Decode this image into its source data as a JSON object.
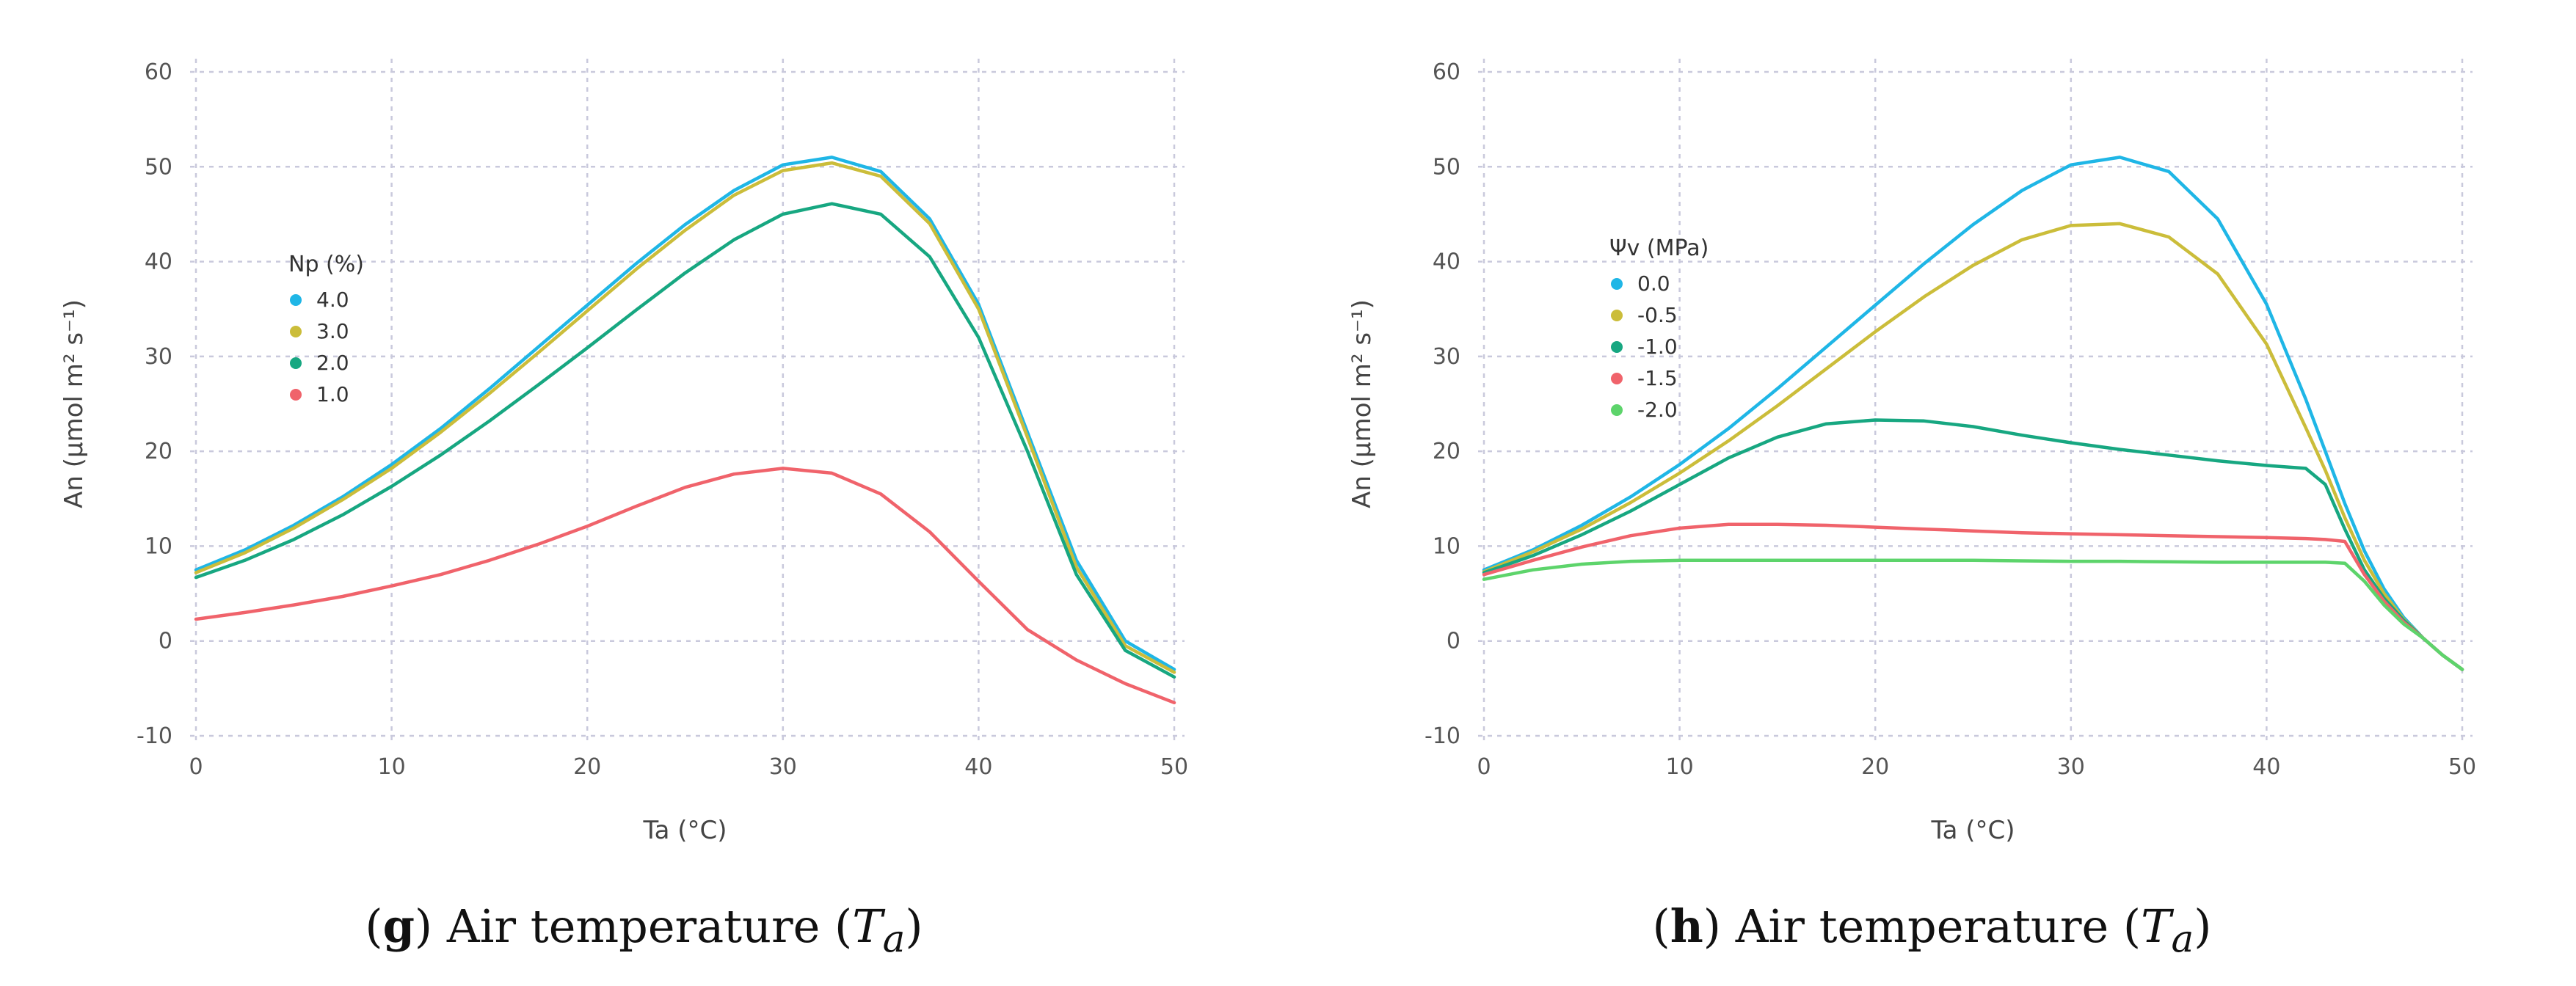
{
  "chart_data": [
    {
      "type": "line",
      "panel": "g",
      "caption": {
        "letter": "g",
        "text": "Air temperature",
        "var": "T",
        "sub": "a"
      },
      "xlabel": "Ta (°C)",
      "ylabel": "An (μmol m² s⁻¹)",
      "xlim": [
        0,
        50
      ],
      "ylim": [
        -10,
        60
      ],
      "xticks": [
        0,
        10,
        20,
        30,
        40,
        50
      ],
      "yticks": [
        -10,
        0,
        10,
        20,
        30,
        40,
        50,
        60
      ],
      "grid": true,
      "legend": {
        "title": "Np (%)",
        "placement": "upper-left"
      },
      "x": [
        0,
        2.5,
        5,
        7.5,
        10,
        12.5,
        15,
        17.5,
        20,
        22.5,
        25,
        27.5,
        30,
        32.5,
        35,
        37.5,
        40,
        42.5,
        45,
        47.5,
        50
      ],
      "series": [
        {
          "name": "4.0",
          "color": "#1fb6e6",
          "values": [
            7.5,
            9.6,
            12.2,
            15.2,
            18.6,
            22.4,
            26.6,
            31.0,
            35.4,
            39.8,
            43.9,
            47.5,
            50.2,
            51.0,
            49.5,
            44.5,
            35.5,
            22.0,
            8.5,
            0.0,
            -3.0
          ]
        },
        {
          "name": "3.0",
          "color": "#cbbd3a",
          "values": [
            7.2,
            9.3,
            11.9,
            14.9,
            18.2,
            22.0,
            26.1,
            30.4,
            34.8,
            39.2,
            43.3,
            47.0,
            49.6,
            50.4,
            49.0,
            44.0,
            35.0,
            21.5,
            7.8,
            -0.5,
            -3.3
          ]
        },
        {
          "name": "2.0",
          "color": "#17a781",
          "values": [
            6.7,
            8.5,
            10.7,
            13.3,
            16.3,
            19.6,
            23.2,
            27.0,
            30.9,
            34.9,
            38.8,
            42.3,
            45.0,
            46.1,
            45.0,
            40.5,
            32.0,
            20.0,
            7.0,
            -1.0,
            -3.8
          ]
        },
        {
          "name": "1.0",
          "color": "#f0636b",
          "values": [
            2.3,
            3.0,
            3.8,
            4.7,
            5.8,
            7.0,
            8.5,
            10.2,
            12.1,
            14.2,
            16.2,
            17.6,
            18.2,
            17.7,
            15.5,
            11.5,
            6.3,
            1.2,
            -2.0,
            -4.5,
            -6.5
          ]
        }
      ]
    },
    {
      "type": "line",
      "panel": "h",
      "caption": {
        "letter": "h",
        "text": "Air temperature",
        "var": "T",
        "sub": "a"
      },
      "xlabel": "Ta (°C)",
      "ylabel": "An (μmol m² s⁻¹)",
      "xlim": [
        0,
        50
      ],
      "ylim": [
        -10,
        60
      ],
      "xticks": [
        0,
        10,
        20,
        30,
        40,
        50
      ],
      "yticks": [
        -10,
        0,
        10,
        20,
        30,
        40,
        50,
        60
      ],
      "grid": true,
      "legend": {
        "title": "Ψv (MPa)",
        "placement": "upper-left"
      },
      "x": [
        0,
        2.5,
        5,
        7.5,
        10,
        12.5,
        15,
        17.5,
        20,
        22.5,
        25,
        27.5,
        30,
        32.5,
        35,
        37.5,
        40,
        42,
        43,
        44,
        45,
        46,
        47,
        48,
        49,
        50
      ],
      "series": [
        {
          "name": "0.0",
          "color": "#1fb6e6",
          "values": [
            7.5,
            9.6,
            12.2,
            15.2,
            18.6,
            22.4,
            26.6,
            31.0,
            35.4,
            39.8,
            43.9,
            47.5,
            50.2,
            51.0,
            49.5,
            44.5,
            35.5,
            25.5,
            20.0,
            14.5,
            9.5,
            5.5,
            2.5,
            0.3,
            -1.5,
            -3.0
          ]
        },
        {
          "name": "-0.5",
          "color": "#cbbd3a",
          "values": [
            7.3,
            9.4,
            11.8,
            14.6,
            17.7,
            21.1,
            24.8,
            28.7,
            32.6,
            36.3,
            39.6,
            42.3,
            43.8,
            44.0,
            42.6,
            38.7,
            31.3,
            22.5,
            18.0,
            13.0,
            8.5,
            5.0,
            2.3,
            0.3,
            -1.5,
            -3.0
          ]
        },
        {
          "name": "-1.0",
          "color": "#17a781",
          "values": [
            7.2,
            9.0,
            11.2,
            13.7,
            16.5,
            19.3,
            21.5,
            22.9,
            23.3,
            23.2,
            22.6,
            21.7,
            20.9,
            20.2,
            19.6,
            19.0,
            18.5,
            18.2,
            16.5,
            11.8,
            7.5,
            4.5,
            2.2,
            0.3,
            -1.5,
            -3.0
          ]
        },
        {
          "name": "-1.5",
          "color": "#f0636b",
          "values": [
            7.0,
            8.5,
            9.9,
            11.1,
            11.9,
            12.3,
            12.3,
            12.2,
            12.0,
            11.8,
            11.6,
            11.4,
            11.3,
            11.2,
            11.1,
            11.0,
            10.9,
            10.8,
            10.7,
            10.5,
            7.0,
            4.2,
            2.0,
            0.3,
            -1.5,
            -3.0
          ]
        },
        {
          "name": "-2.0",
          "color": "#5dd46b",
          "values": [
            6.5,
            7.5,
            8.1,
            8.4,
            8.5,
            8.5,
            8.5,
            8.5,
            8.5,
            8.5,
            8.5,
            8.45,
            8.4,
            8.4,
            8.35,
            8.3,
            8.3,
            8.3,
            8.3,
            8.2,
            6.3,
            3.8,
            1.8,
            0.3,
            -1.5,
            -3.0
          ]
        }
      ]
    }
  ]
}
